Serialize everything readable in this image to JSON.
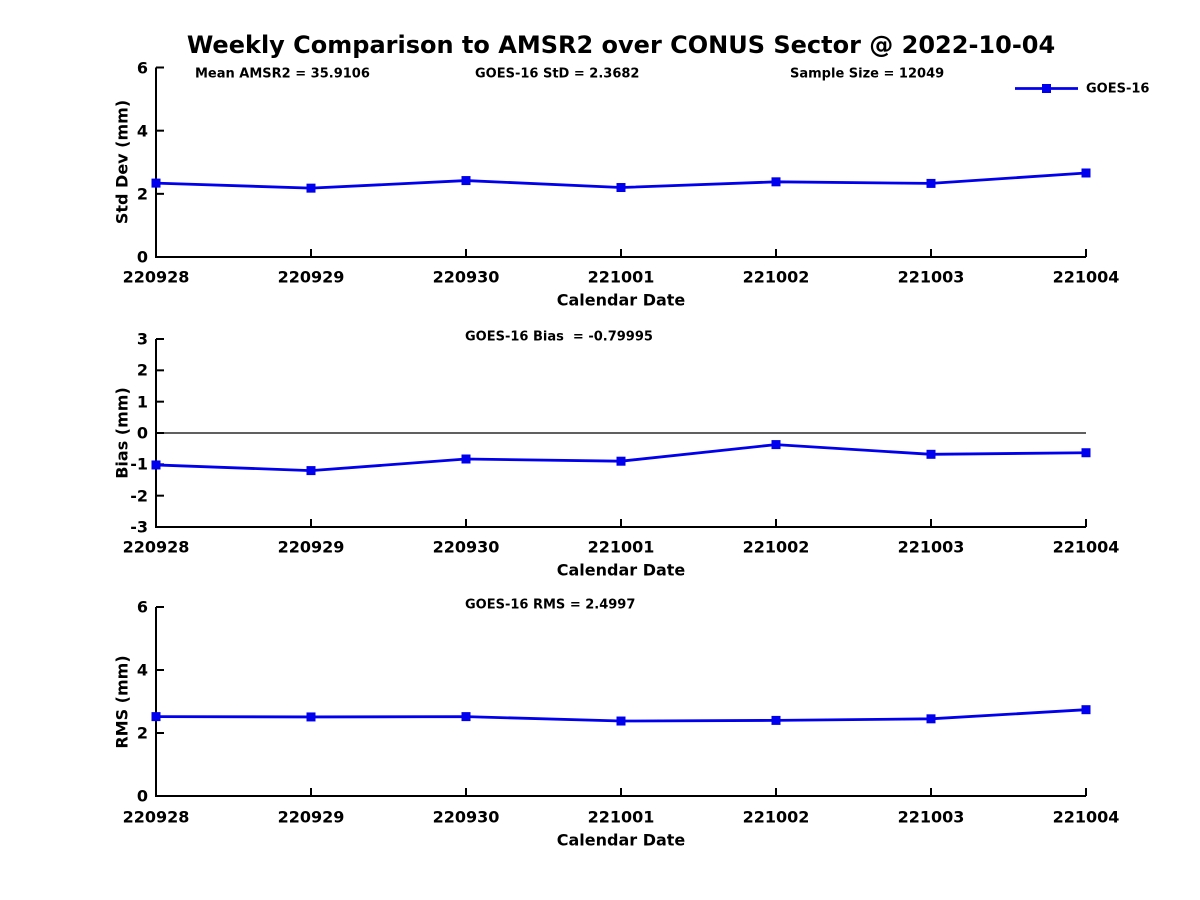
{
  "title": "Weekly Comparison to AMSR2 over CONUS Sector @ 2022-10-04",
  "legend": {
    "label": "GOES-16",
    "color": "#0000ee",
    "marker": "square"
  },
  "chart_data": [
    {
      "type": "line",
      "id": "stddev",
      "annotations": [
        "Mean AMSR2 = 35.9106",
        "GOES-16 StD = 2.3682",
        "Sample Size = 12049"
      ],
      "ylabel": "Std Dev (mm)",
      "xlabel": "Calendar Date",
      "ylim": [
        0,
        6
      ],
      "yticks": [
        0,
        2,
        4,
        6
      ],
      "grid": false,
      "legend_position": "top-right",
      "show_legend": true,
      "zero_line": false,
      "categories": [
        "220928",
        "220929",
        "220930",
        "221001",
        "221002",
        "221003",
        "221004"
      ],
      "series": [
        {
          "name": "GOES-16",
          "color": "#0000ee",
          "marker": "square",
          "values": [
            2.34,
            2.18,
            2.42,
            2.2,
            2.38,
            2.33,
            2.66
          ]
        }
      ]
    },
    {
      "type": "line",
      "id": "bias",
      "annotations": [
        "GOES-16 Bias  = -0.79995"
      ],
      "ylabel": "Bias (mm)",
      "xlabel": "Calendar Date",
      "ylim": [
        -3,
        3
      ],
      "yticks": [
        -3,
        -2,
        -1,
        0,
        1,
        2,
        3
      ],
      "grid": false,
      "show_legend": false,
      "zero_line": true,
      "categories": [
        "220928",
        "220929",
        "220930",
        "221001",
        "221002",
        "221003",
        "221004"
      ],
      "series": [
        {
          "name": "GOES-16",
          "color": "#0000ee",
          "marker": "square",
          "values": [
            -1.02,
            -1.2,
            -0.83,
            -0.9,
            -0.37,
            -0.68,
            -0.63
          ]
        }
      ]
    },
    {
      "type": "line",
      "id": "rms",
      "annotations": [
        "GOES-16 RMS = 2.4997"
      ],
      "ylabel": "RMS (mm)",
      "xlabel": "Calendar Date",
      "ylim": [
        0,
        6
      ],
      "yticks": [
        0,
        2,
        4,
        6
      ],
      "grid": false,
      "show_legend": false,
      "zero_line": false,
      "categories": [
        "220928",
        "220929",
        "220930",
        "221001",
        "221002",
        "221003",
        "221004"
      ],
      "series": [
        {
          "name": "GOES-16",
          "color": "#0000ee",
          "marker": "square",
          "values": [
            2.52,
            2.51,
            2.52,
            2.38,
            2.4,
            2.45,
            2.74
          ]
        }
      ]
    }
  ]
}
